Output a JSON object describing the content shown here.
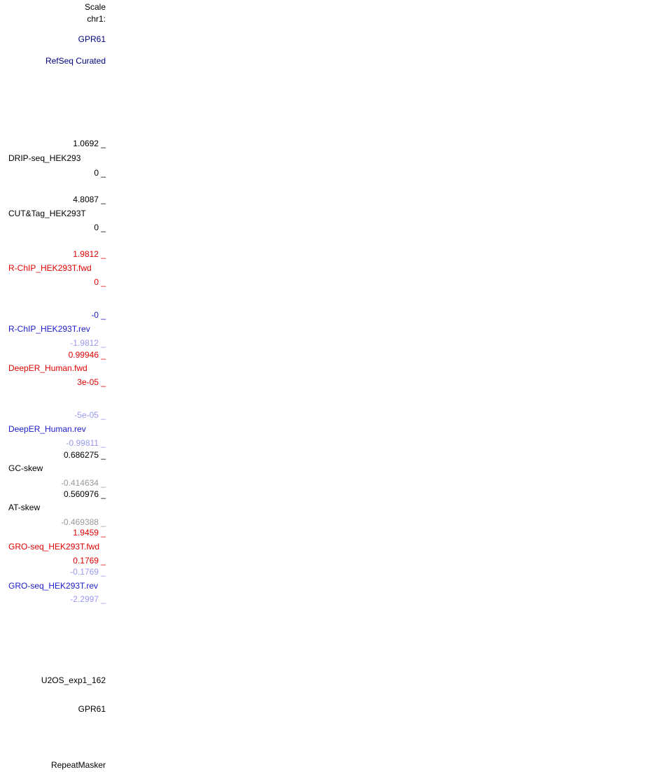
{
  "colors": {
    "black": "#000000",
    "navy": "#000080",
    "red": "#e00000",
    "blue": "#1a1acc",
    "light_blue": "#9999ee",
    "gray": "#999999"
  },
  "label_column": {
    "ruler": {
      "scale": "Scale",
      "position": "chr1:"
    },
    "gene_track": {
      "gene": "GPR61",
      "track_label": "RefSeq Curated"
    },
    "signal_tracks": [
      {
        "name": "DRIP-seq_HEK293",
        "max": "1.0692 _",
        "min": "0 _",
        "name_color": "black",
        "max_color": "black",
        "min_color": "black"
      },
      {
        "name": "CUT&Tag_HEK293T",
        "max": "4.8087 _",
        "min": "0 _",
        "name_color": "black",
        "max_color": "black",
        "min_color": "black"
      },
      {
        "name": "R-ChIP_HEK293T.fwd",
        "max": "1.9812 _",
        "min": "0 _",
        "name_color": "red",
        "max_color": "red",
        "min_color": "red"
      },
      {
        "name": "R-ChIP_HEK293T.rev",
        "max": "-0 _",
        "min": "-1.9812 _",
        "name_color": "blue",
        "max_color": "blue",
        "min_color": "light_blue"
      },
      {
        "name": "DeepER_Human.fwd",
        "max": "0.99946 _",
        "min": "3e-05 _",
        "name_color": "red",
        "max_color": "red",
        "min_color": "red"
      },
      {
        "name": "DeepER_Human.rev",
        "max": "-5e-05 _",
        "min": "-0.99811 _",
        "name_color": "blue",
        "max_color": "light_blue",
        "min_color": "light_blue"
      },
      {
        "name": "GC-skew",
        "max": "0.686275 _",
        "min": "-0.414634 _",
        "name_color": "black",
        "max_color": "black",
        "min_color": "gray"
      },
      {
        "name": "AT-skew",
        "max": "0.560976 _",
        "min": "-0.469388 _",
        "name_color": "black",
        "max_color": "black",
        "min_color": "gray"
      },
      {
        "name": "GRO-seq_HEK293T.fwd",
        "max": "1.9459 _",
        "min": "0.1769 _",
        "name_color": "red",
        "max_color": "red",
        "min_color": "red"
      },
      {
        "name": "GRO-seq_HEK293T.rev",
        "max": "-0.1769 _",
        "min": "-2.2997 _",
        "name_color": "blue",
        "max_color": "light_blue",
        "min_color": "light_blue"
      }
    ],
    "bottom_tracks": {
      "u2os": "U2OS_exp1_162",
      "gene": "GPR61",
      "repeatmasker": "RepeatMasker"
    }
  }
}
